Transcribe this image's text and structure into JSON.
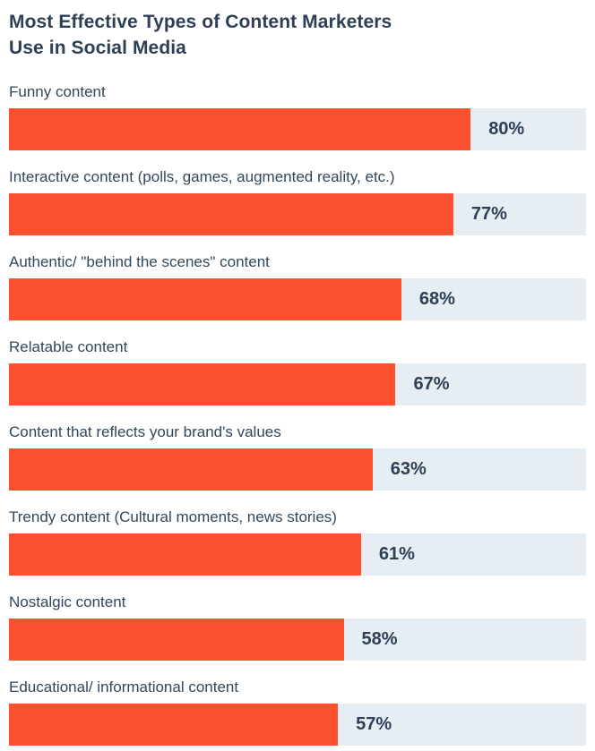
{
  "header": {
    "title_line1": "Most Effective Types of Content Marketers",
    "title_line2": "Use in Social Media"
  },
  "chart_data": {
    "type": "bar",
    "orientation": "horizontal",
    "title": "Most Effective Types of Content Marketers Use in Social Media",
    "categories": [
      "Funny content",
      "Interactive content (polls, games, augmented reality, etc.)",
      "Authentic/ \"behind the scenes\" content",
      "Relatable content",
      "Content that reflects your brand's values",
      "Trendy content (Cultural moments, news stories)",
      "Nostalgic content",
      "Educational/ informational content"
    ],
    "values": [
      80,
      77,
      68,
      67,
      63,
      61,
      58,
      57
    ],
    "value_suffix": "%",
    "xlabel": "",
    "ylabel": "",
    "xlim": [
      0,
      100
    ],
    "grid": false,
    "legend": null,
    "value_label_position": "right-of-bar-inside-track",
    "colors": {
      "bar": "#FC512F",
      "track": "#E6EDF3",
      "title_text": "#2E3F55",
      "label_text": "#33475B",
      "value_text": "#2E3F55",
      "page_bg": "#FFFFFF"
    }
  }
}
